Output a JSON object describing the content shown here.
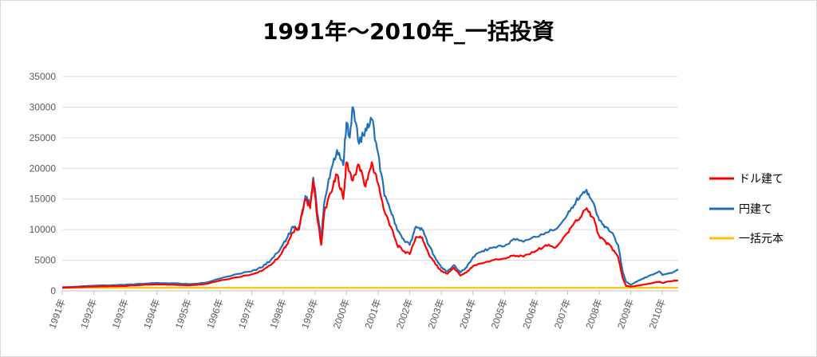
{
  "chart_data": {
    "type": "line",
    "title": "1991年～2010年_一括投資",
    "ylim": [
      0,
      35000
    ],
    "yticks": [
      0,
      5000,
      10000,
      15000,
      20000,
      25000,
      30000,
      35000
    ],
    "xlim": [
      1991,
      2010.5
    ],
    "xticks": [
      "1991年",
      "1992年",
      "1993年",
      "1994年",
      "1995年",
      "1996年",
      "1997年",
      "1998年",
      "1999年",
      "2000年",
      "2001年",
      "2002年",
      "2003年",
      "2004年",
      "2005年",
      "2006年",
      "2007年",
      "2008年",
      "2009年",
      "2010年"
    ],
    "grid": "horizontal",
    "legend_position": "right",
    "series": [
      {
        "name": "ドル建て",
        "color": "#ff0000",
        "points": [
          [
            1991,
            500
          ],
          [
            1991.5,
            600
          ],
          [
            1992,
            700
          ],
          [
            1992.5,
            750
          ],
          [
            1993,
            800
          ],
          [
            1993.5,
            950
          ],
          [
            1994,
            1050
          ],
          [
            1994.5,
            1000
          ],
          [
            1995,
            900
          ],
          [
            1995.5,
            1100
          ],
          [
            1996,
            1700
          ],
          [
            1996.5,
            2200
          ],
          [
            1997,
            2700
          ],
          [
            1997.3,
            3200
          ],
          [
            1997.6,
            4200
          ],
          [
            1997.9,
            5800
          ],
          [
            1998.1,
            7500
          ],
          [
            1998.3,
            9500
          ],
          [
            1998.5,
            10500
          ],
          [
            1998.7,
            15000
          ],
          [
            1998.85,
            13500
          ],
          [
            1998.95,
            18000
          ],
          [
            1999.1,
            11000
          ],
          [
            1999.2,
            7500
          ],
          [
            1999.3,
            13000
          ],
          [
            1999.5,
            16000
          ],
          [
            1999.7,
            19000
          ],
          [
            1999.9,
            15000
          ],
          [
            2000,
            21000
          ],
          [
            2000.2,
            18000
          ],
          [
            2000.4,
            20500
          ],
          [
            2000.6,
            17000
          ],
          [
            2000.8,
            21000
          ],
          [
            2001,
            17500
          ],
          [
            2001.2,
            13000
          ],
          [
            2001.4,
            10500
          ],
          [
            2001.6,
            7500
          ],
          [
            2001.8,
            6500
          ],
          [
            2002,
            6000
          ],
          [
            2002.2,
            8800
          ],
          [
            2002.4,
            8700
          ],
          [
            2002.6,
            6000
          ],
          [
            2002.8,
            4500
          ],
          [
            2003,
            3200
          ],
          [
            2003.2,
            2800
          ],
          [
            2003.4,
            3800
          ],
          [
            2003.6,
            2500
          ],
          [
            2003.8,
            3000
          ],
          [
            2004,
            4000
          ],
          [
            2004.3,
            4500
          ],
          [
            2004.6,
            5000
          ],
          [
            2005,
            5300
          ],
          [
            2005.3,
            5800
          ],
          [
            2005.6,
            5600
          ],
          [
            2006,
            6500
          ],
          [
            2006.3,
            7500
          ],
          [
            2006.6,
            7000
          ],
          [
            2007,
            9500
          ],
          [
            2007.2,
            11000
          ],
          [
            2007.4,
            12000
          ],
          [
            2007.6,
            13500
          ],
          [
            2007.8,
            12000
          ],
          [
            2008,
            9000
          ],
          [
            2008.2,
            8000
          ],
          [
            2008.4,
            7000
          ],
          [
            2008.6,
            5500
          ],
          [
            2008.75,
            2000
          ],
          [
            2008.85,
            800
          ],
          [
            2009,
            700
          ],
          [
            2009.3,
            900
          ],
          [
            2009.6,
            1200
          ],
          [
            2009.9,
            1500
          ],
          [
            2010,
            1300
          ],
          [
            2010.3,
            1600
          ],
          [
            2010.5,
            1700
          ]
        ]
      },
      {
        "name": "円建て",
        "color": "#1f70b8",
        "points": [
          [
            1991,
            600
          ],
          [
            1991.5,
            700
          ],
          [
            1992,
            850
          ],
          [
            1992.5,
            900
          ],
          [
            1993,
            1000
          ],
          [
            1993.5,
            1150
          ],
          [
            1994,
            1300
          ],
          [
            1994.5,
            1250
          ],
          [
            1995,
            1100
          ],
          [
            1995.5,
            1300
          ],
          [
            1996,
            2000
          ],
          [
            1996.5,
            2700
          ],
          [
            1997,
            3200
          ],
          [
            1997.3,
            3800
          ],
          [
            1997.6,
            5000
          ],
          [
            1997.9,
            6800
          ],
          [
            1998.1,
            8500
          ],
          [
            1998.3,
            10500
          ],
          [
            1998.5,
            10000
          ],
          [
            1998.7,
            15500
          ],
          [
            1998.85,
            14000
          ],
          [
            1998.95,
            18500
          ],
          [
            1999.1,
            12000
          ],
          [
            1999.2,
            8500
          ],
          [
            1999.3,
            14500
          ],
          [
            1999.5,
            19500
          ],
          [
            1999.7,
            23000
          ],
          [
            1999.9,
            20500
          ],
          [
            2000,
            27500
          ],
          [
            2000.1,
            25000
          ],
          [
            2000.2,
            30000
          ],
          [
            2000.4,
            24000
          ],
          [
            2000.6,
            26500
          ],
          [
            2000.8,
            28000
          ],
          [
            2001,
            22500
          ],
          [
            2001.2,
            15500
          ],
          [
            2001.4,
            13000
          ],
          [
            2001.6,
            10000
          ],
          [
            2001.8,
            8500
          ],
          [
            2002,
            7500
          ],
          [
            2002.2,
            10500
          ],
          [
            2002.4,
            10000
          ],
          [
            2002.6,
            7500
          ],
          [
            2002.8,
            5500
          ],
          [
            2003,
            3800
          ],
          [
            2003.2,
            3200
          ],
          [
            2003.4,
            4200
          ],
          [
            2003.6,
            3000
          ],
          [
            2003.8,
            3800
          ],
          [
            2004,
            5500
          ],
          [
            2004.3,
            6500
          ],
          [
            2004.6,
            7000
          ],
          [
            2005,
            7300
          ],
          [
            2005.3,
            8500
          ],
          [
            2005.6,
            8000
          ],
          [
            2006,
            8800
          ],
          [
            2006.3,
            9500
          ],
          [
            2006.6,
            10000
          ],
          [
            2007,
            12500
          ],
          [
            2007.2,
            14000
          ],
          [
            2007.4,
            15500
          ],
          [
            2007.6,
            16500
          ],
          [
            2007.8,
            14500
          ],
          [
            2008,
            11500
          ],
          [
            2008.2,
            10500
          ],
          [
            2008.4,
            9500
          ],
          [
            2008.6,
            7500
          ],
          [
            2008.75,
            3000
          ],
          [
            2008.85,
            1500
          ],
          [
            2009,
            1000
          ],
          [
            2009.3,
            1800
          ],
          [
            2009.6,
            2500
          ],
          [
            2009.9,
            3200
          ],
          [
            2010,
            2600
          ],
          [
            2010.3,
            2900
          ],
          [
            2010.5,
            3500
          ]
        ]
      },
      {
        "name": "一括元本",
        "color": "#ffc000",
        "points": [
          [
            1991,
            500
          ],
          [
            2010.5,
            500
          ]
        ]
      }
    ]
  }
}
